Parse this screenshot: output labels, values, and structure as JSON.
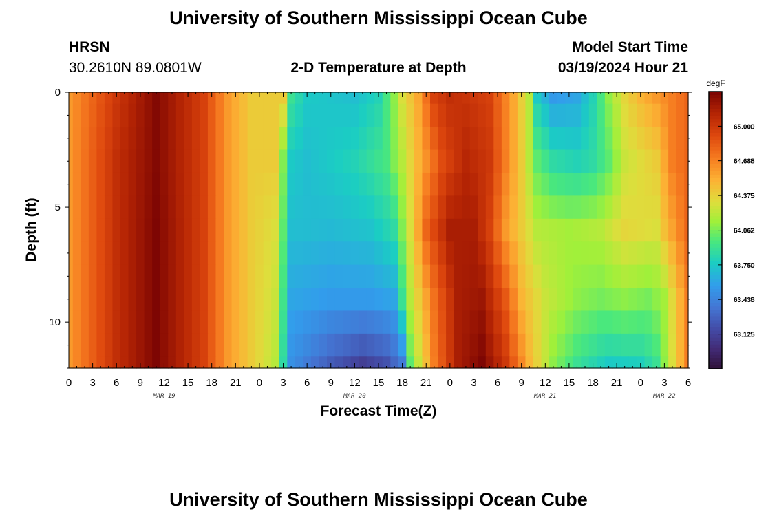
{
  "header": {
    "title": "University of Southern Mississippi Ocean Cube",
    "station": "HRSN",
    "coords": "30.2610N  89.0801W",
    "subtitle": "2-D Temperature at Depth",
    "model_start_label": "Model Start Time",
    "model_start_value": "03/19/2024 Hour 21"
  },
  "footer": {
    "title": "University of Southern Mississippi Ocean Cube"
  },
  "chart_data": {
    "type": "heatmap",
    "title": "2-D Temperature at Depth",
    "xlabel": "Forecast Time(Z)",
    "ylabel": "Depth (ft)",
    "x_start_hour": 0,
    "x_end_hour": 78,
    "x_step_hours": 1,
    "x_tick_labels": [
      "0",
      "3",
      "6",
      "9",
      "12",
      "15",
      "18",
      "21",
      "0",
      "3",
      "6",
      "9",
      "12",
      "15",
      "18",
      "21",
      "0",
      "3",
      "6",
      "9",
      "12",
      "15",
      "18",
      "21",
      "0",
      "3",
      "6"
    ],
    "date_labels": [
      {
        "hour": 12,
        "label": "MAR 19"
      },
      {
        "hour": 36,
        "label": "MAR 20"
      },
      {
        "hour": 60,
        "label": "MAR 21"
      },
      {
        "hour": 75,
        "label": "MAR 22"
      }
    ],
    "y_ticks": [
      0,
      5,
      10
    ],
    "y_range": [
      0,
      12
    ],
    "depths": [
      0,
      1,
      2,
      3,
      4,
      5,
      6,
      7,
      8,
      9,
      10,
      11,
      12
    ],
    "colorbar": {
      "unit": "degF",
      "min": 62.8125,
      "max": 65.3125,
      "tick_values": [
        63.125,
        63.438,
        63.75,
        64.062,
        64.375,
        64.688,
        65.0
      ],
      "tick_labels": [
        "63.125",
        "63.438",
        "63.750",
        "64.062",
        "64.375",
        "64.688",
        "65.000"
      ]
    },
    "series": [
      {
        "name": "0 ft",
        "hour_temps": [
          [
            0,
            64.6
          ],
          [
            6,
            65.0
          ],
          [
            11,
            65.28
          ],
          [
            17,
            64.95
          ],
          [
            20,
            64.6
          ],
          [
            23,
            64.4
          ],
          [
            27,
            64.4
          ],
          [
            28,
            63.9
          ],
          [
            30,
            63.75
          ],
          [
            36,
            63.7
          ],
          [
            39,
            63.8
          ],
          [
            41,
            64.1
          ],
          [
            42,
            64.3
          ],
          [
            44,
            64.55
          ],
          [
            46,
            64.95
          ],
          [
            48,
            65.05
          ],
          [
            51,
            65.0
          ],
          [
            53,
            64.95
          ],
          [
            56,
            64.55
          ],
          [
            58,
            64.2
          ],
          [
            59,
            63.75
          ],
          [
            61,
            63.55
          ],
          [
            64,
            63.6
          ],
          [
            66,
            63.8
          ],
          [
            68,
            64.1
          ],
          [
            70,
            64.35
          ],
          [
            72,
            64.5
          ],
          [
            76,
            64.7
          ],
          [
            78,
            64.8
          ]
        ]
      },
      {
        "name": "3 ft",
        "hour_temps": [
          [
            0,
            64.6
          ],
          [
            6,
            65.05
          ],
          [
            11,
            65.28
          ],
          [
            17,
            64.95
          ],
          [
            20,
            64.6
          ],
          [
            23,
            64.4
          ],
          [
            26,
            64.4
          ],
          [
            28,
            63.75
          ],
          [
            30,
            63.7
          ],
          [
            36,
            63.8
          ],
          [
            40,
            63.95
          ],
          [
            42,
            64.2
          ],
          [
            44,
            64.5
          ],
          [
            47,
            64.9
          ],
          [
            50,
            65.1
          ],
          [
            53,
            65.0
          ],
          [
            55,
            64.7
          ],
          [
            57,
            64.4
          ],
          [
            59,
            64.0
          ],
          [
            61,
            63.85
          ],
          [
            64,
            63.8
          ],
          [
            66,
            63.85
          ],
          [
            68,
            64.0
          ],
          [
            70,
            64.25
          ],
          [
            74,
            64.4
          ],
          [
            76,
            64.7
          ],
          [
            78,
            64.8
          ]
        ]
      },
      {
        "name": "6 ft",
        "hour_temps": [
          [
            0,
            64.6
          ],
          [
            6,
            65.05
          ],
          [
            11,
            65.3
          ],
          [
            17,
            64.95
          ],
          [
            20,
            64.6
          ],
          [
            23,
            64.4
          ],
          [
            26,
            64.3
          ],
          [
            28,
            63.7
          ],
          [
            33,
            63.68
          ],
          [
            38,
            63.72
          ],
          [
            41,
            63.85
          ],
          [
            43,
            64.3
          ],
          [
            45,
            64.8
          ],
          [
            48,
            65.15
          ],
          [
            51,
            65.15
          ],
          [
            53,
            64.95
          ],
          [
            55,
            64.6
          ],
          [
            57,
            64.4
          ],
          [
            59,
            64.2
          ],
          [
            63,
            64.15
          ],
          [
            67,
            64.2
          ],
          [
            70,
            64.35
          ],
          [
            74,
            64.3
          ],
          [
            75,
            64.45
          ],
          [
            78,
            64.8
          ]
        ]
      },
      {
        "name": "9 ft",
        "hour_temps": [
          [
            0,
            64.6
          ],
          [
            6,
            65.05
          ],
          [
            11,
            65.3
          ],
          [
            17,
            64.95
          ],
          [
            20,
            64.6
          ],
          [
            23,
            64.4
          ],
          [
            26,
            64.25
          ],
          [
            28,
            63.6
          ],
          [
            33,
            63.55
          ],
          [
            38,
            63.55
          ],
          [
            41,
            63.6
          ],
          [
            43,
            64.2
          ],
          [
            46,
            64.75
          ],
          [
            49,
            65.15
          ],
          [
            52,
            65.2
          ],
          [
            55,
            64.85
          ],
          [
            57,
            64.5
          ],
          [
            60,
            64.25
          ],
          [
            64,
            64.1
          ],
          [
            67,
            64.05
          ],
          [
            70,
            64.1
          ],
          [
            73,
            64.05
          ],
          [
            75,
            64.15
          ],
          [
            78,
            64.7
          ]
        ]
      },
      {
        "name": "12 ft",
        "hour_temps": [
          [
            0,
            64.6
          ],
          [
            6,
            65.05
          ],
          [
            11,
            65.3
          ],
          [
            17,
            64.95
          ],
          [
            20,
            64.6
          ],
          [
            23,
            64.4
          ],
          [
            26,
            64.2
          ],
          [
            28,
            63.5
          ],
          [
            33,
            63.25
          ],
          [
            37,
            63.1
          ],
          [
            40,
            63.2
          ],
          [
            42,
            63.4
          ],
          [
            43,
            64.0
          ],
          [
            46,
            64.7
          ],
          [
            49,
            65.15
          ],
          [
            52,
            65.3
          ],
          [
            55,
            65.0
          ],
          [
            58,
            64.5
          ],
          [
            61,
            64.1
          ],
          [
            64,
            63.9
          ],
          [
            68,
            63.75
          ],
          [
            72,
            63.78
          ],
          [
            74,
            63.9
          ],
          [
            76,
            64.3
          ],
          [
            78,
            64.7
          ]
        ]
      }
    ]
  }
}
